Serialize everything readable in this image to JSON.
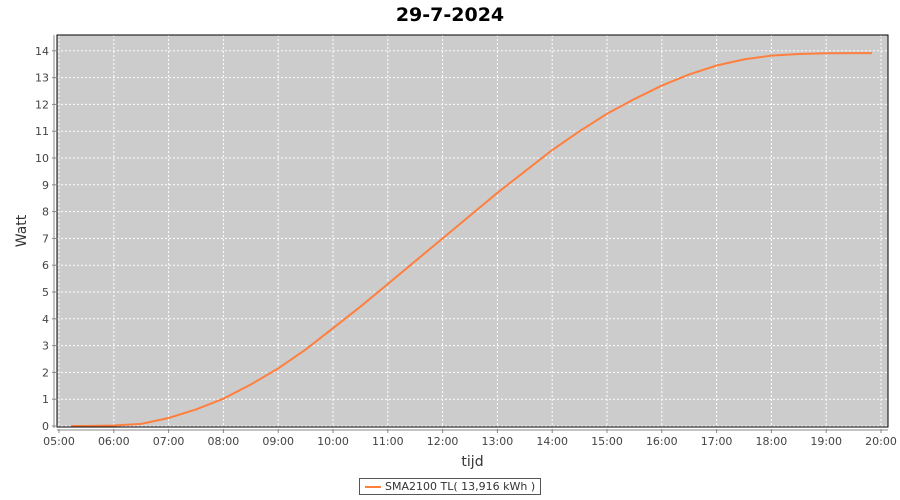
{
  "chart_data": {
    "type": "line",
    "title": "29-7-2024",
    "xlabel": "tijd",
    "ylabel": "Watt",
    "xlim": [
      "05:00",
      "20:00"
    ],
    "ylim": [
      0,
      14.5
    ],
    "x_ticks": [
      "05:00",
      "06:00",
      "07:00",
      "08:00",
      "09:00",
      "10:00",
      "11:00",
      "12:00",
      "13:00",
      "14:00",
      "15:00",
      "16:00",
      "17:00",
      "18:00",
      "19:00",
      "20:00"
    ],
    "y_ticks": [
      "0",
      "1",
      "2",
      "3",
      "4",
      "5",
      "6",
      "7",
      "8",
      "9",
      "10",
      "11",
      "12",
      "13",
      "14"
    ],
    "grid": true,
    "legend_position": "bottom",
    "background_color": "#cccccc",
    "series": [
      {
        "name": "SMA2100 TL( 13,916 kWh )",
        "color": "#ff7f3f",
        "x": [
          "05:13",
          "05:30",
          "06:00",
          "06:30",
          "07:00",
          "07:30",
          "08:00",
          "08:30",
          "09:00",
          "09:30",
          "10:00",
          "10:30",
          "11:00",
          "11:30",
          "12:00",
          "12:30",
          "13:00",
          "13:30",
          "14:00",
          "14:30",
          "15:00",
          "15:30",
          "16:00",
          "16:30",
          "17:00",
          "17:30",
          "18:00",
          "18:30",
          "19:00",
          "19:30",
          "19:50"
        ],
        "y": [
          0,
          0,
          0.02,
          0.08,
          0.3,
          0.62,
          1.02,
          1.55,
          2.15,
          2.85,
          3.65,
          4.45,
          5.3,
          6.15,
          7.0,
          7.85,
          8.7,
          9.5,
          10.3,
          11.0,
          11.65,
          12.2,
          12.7,
          13.12,
          13.45,
          13.68,
          13.82,
          13.88,
          13.91,
          13.915,
          13.916
        ]
      }
    ]
  }
}
